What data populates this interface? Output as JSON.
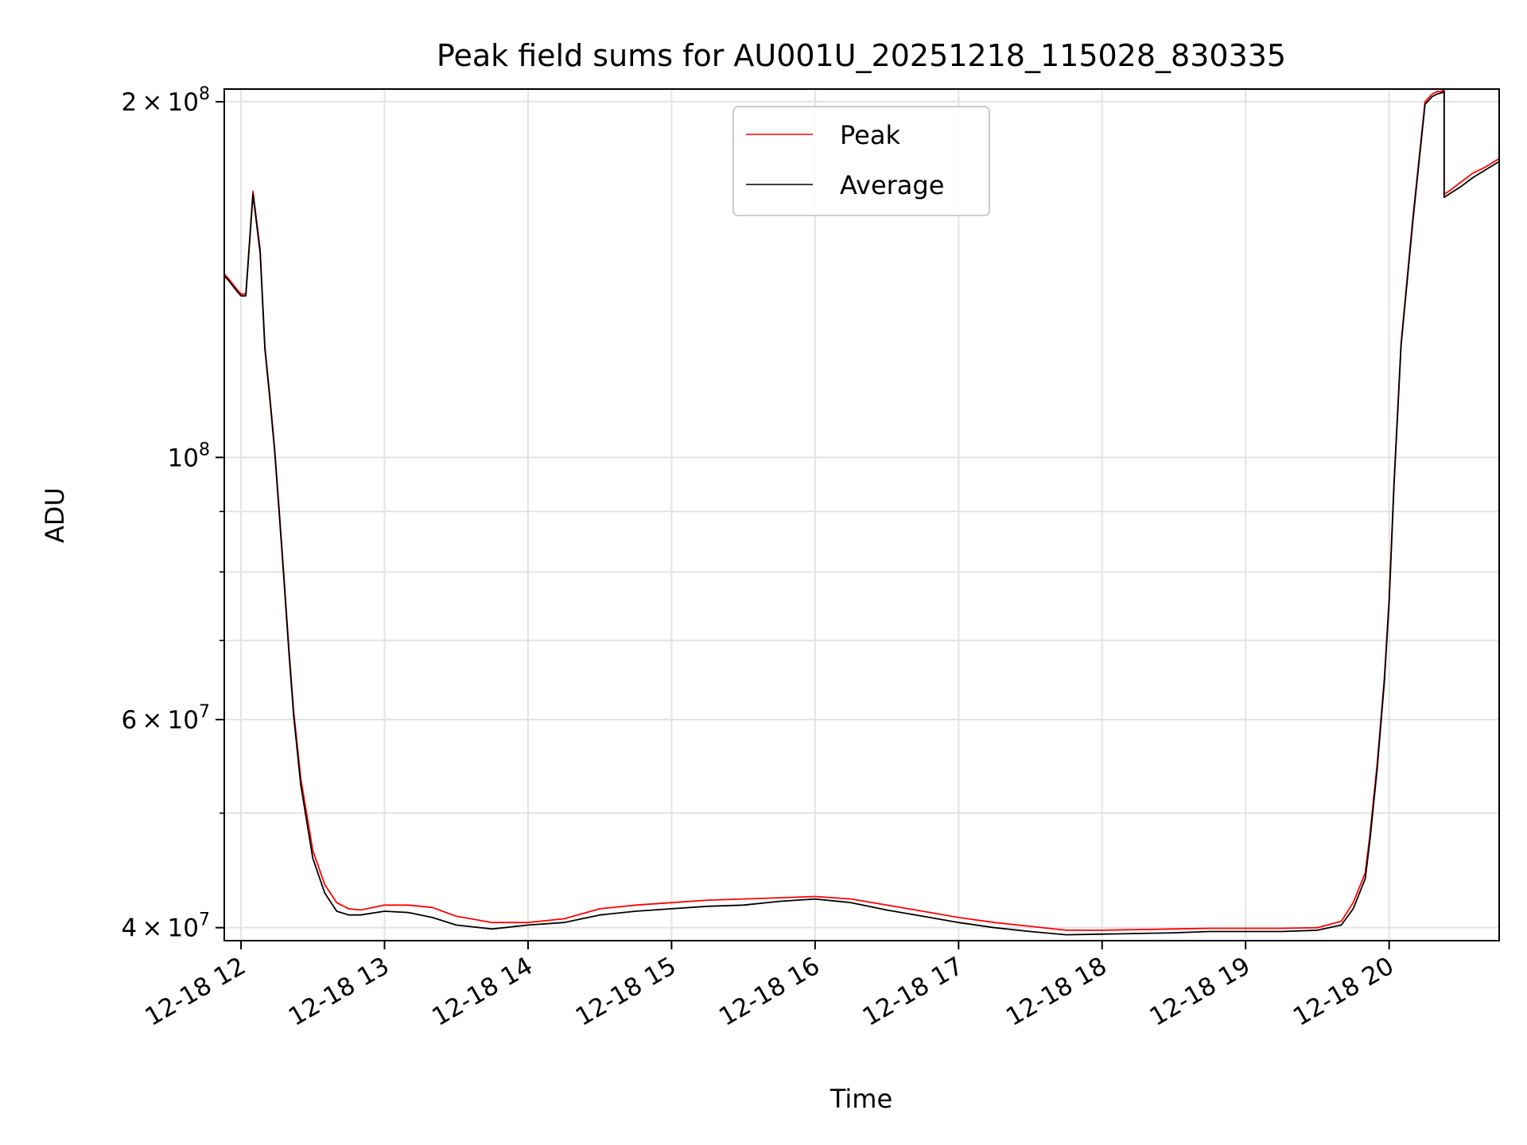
{
  "chart_data": {
    "type": "line",
    "title": "Peak field sums for AU001U_20251218_115028_830335",
    "xlabel": "Time",
    "ylabel": "ADU",
    "yscale": "log",
    "ylim": [
      39000000,
      205000000
    ],
    "xlim": [
      "2025-12-18 11:53",
      "2025-12-18 20:46"
    ],
    "grid": true,
    "legend_position": "top-center",
    "x_ticks": [
      "2025-12-18 12:00",
      "2025-12-18 13:00",
      "2025-12-18 14:00",
      "2025-12-18 15:00",
      "2025-12-18 16:00",
      "2025-12-18 17:00",
      "2025-12-18 18:00",
      "2025-12-18 19:00",
      "2025-12-18 20:00"
    ],
    "x_tick_labels": [
      "12-18 12",
      "12-18 13",
      "12-18 14",
      "12-18 15",
      "12-18 16",
      "12-18 17",
      "12-18 18",
      "12-18 19",
      "12-18 20"
    ],
    "y_major_ticks": [
      {
        "value": 40000000,
        "mantissa": "4",
        "exponent": "7"
      },
      {
        "value": 60000000,
        "mantissa": "6",
        "exponent": "7"
      },
      {
        "value": 100000000,
        "mantissa": "",
        "exponent": "8"
      },
      {
        "value": 200000000,
        "mantissa": "2",
        "exponent": "8"
      }
    ],
    "y_minor_ticks": [
      50000000,
      70000000,
      80000000,
      90000000
    ],
    "series": [
      {
        "name": "Peak",
        "color": "#ff0000",
        "x": [
          "2025-12-18 11:53",
          "2025-12-18 11:55",
          "2025-12-18 11:58",
          "2025-12-18 12:00",
          "2025-12-18 12:02",
          "2025-12-18 12:05",
          "2025-12-18 12:08",
          "2025-12-18 12:10",
          "2025-12-18 12:12",
          "2025-12-18 12:14",
          "2025-12-18 12:16",
          "2025-12-18 12:18",
          "2025-12-18 12:20",
          "2025-12-18 12:22",
          "2025-12-18 12:25",
          "2025-12-18 12:30",
          "2025-12-18 12:35",
          "2025-12-18 12:40",
          "2025-12-18 12:45",
          "2025-12-18 12:50",
          "2025-12-18 13:00",
          "2025-12-18 13:10",
          "2025-12-18 13:20",
          "2025-12-18 13:30",
          "2025-12-18 13:45",
          "2025-12-18 14:00",
          "2025-12-18 14:15",
          "2025-12-18 14:30",
          "2025-12-18 14:45",
          "2025-12-18 15:00",
          "2025-12-18 15:15",
          "2025-12-18 15:30",
          "2025-12-18 15:45",
          "2025-12-18 16:00",
          "2025-12-18 16:15",
          "2025-12-18 16:30",
          "2025-12-18 16:45",
          "2025-12-18 17:00",
          "2025-12-18 17:15",
          "2025-12-18 17:30",
          "2025-12-18 17:45",
          "2025-12-18 18:00",
          "2025-12-18 18:15",
          "2025-12-18 18:30",
          "2025-12-18 18:45",
          "2025-12-18 19:00",
          "2025-12-18 19:15",
          "2025-12-18 19:30",
          "2025-12-18 19:40",
          "2025-12-18 19:45",
          "2025-12-18 19:50",
          "2025-12-18 19:52",
          "2025-12-18 19:55",
          "2025-12-18 19:58",
          "2025-12-18 20:00",
          "2025-12-18 20:02",
          "2025-12-18 20:05",
          "2025-12-18 20:10",
          "2025-12-18 20:15",
          "2025-12-18 20:18",
          "2025-12-18 20:20",
          "2025-12-18 20:22",
          "2025-12-18 20:23",
          "2025-12-18 20:23",
          "2025-12-18 20:25",
          "2025-12-18 20:30",
          "2025-12-18 20:35",
          "2025-12-18 20:40",
          "2025-12-18 20:46"
        ],
        "values": [
          143000000,
          141500000,
          139000000,
          137500000,
          137500000,
          168000000,
          150000000,
          124000000,
          113000000,
          102000000,
          90000000,
          79000000,
          69000000,
          61000000,
          53500000,
          46500000,
          43500000,
          42000000,
          41500000,
          41400000,
          41800000,
          41800000,
          41600000,
          40900000,
          40400000,
          40400000,
          40700000,
          41500000,
          41800000,
          42000000,
          42200000,
          42300000,
          42400000,
          42500000,
          42300000,
          41800000,
          41300000,
          40800000,
          40400000,
          40100000,
          39800000,
          39800000,
          39850000,
          39900000,
          39950000,
          39950000,
          39950000,
          40000000,
          40500000,
          42000000,
          44500000,
          48000000,
          55000000,
          65000000,
          76000000,
          95000000,
          125000000,
          160000000,
          200000000,
          203000000,
          204000000,
          204000000,
          205000000,
          167000000,
          168000000,
          171000000,
          174000000,
          176000000,
          179000000
        ]
      },
      {
        "name": "Average",
        "color": "#000000",
        "x": [
          "2025-12-18 11:53",
          "2025-12-18 11:55",
          "2025-12-18 11:58",
          "2025-12-18 12:00",
          "2025-12-18 12:02",
          "2025-12-18 12:05",
          "2025-12-18 12:08",
          "2025-12-18 12:10",
          "2025-12-18 12:12",
          "2025-12-18 12:14",
          "2025-12-18 12:16",
          "2025-12-18 12:18",
          "2025-12-18 12:20",
          "2025-12-18 12:22",
          "2025-12-18 12:25",
          "2025-12-18 12:30",
          "2025-12-18 12:35",
          "2025-12-18 12:40",
          "2025-12-18 12:45",
          "2025-12-18 12:50",
          "2025-12-18 13:00",
          "2025-12-18 13:10",
          "2025-12-18 13:20",
          "2025-12-18 13:30",
          "2025-12-18 13:45",
          "2025-12-18 14:00",
          "2025-12-18 14:15",
          "2025-12-18 14:30",
          "2025-12-18 14:45",
          "2025-12-18 15:00",
          "2025-12-18 15:15",
          "2025-12-18 15:30",
          "2025-12-18 15:45",
          "2025-12-18 16:00",
          "2025-12-18 16:15",
          "2025-12-18 16:30",
          "2025-12-18 16:45",
          "2025-12-18 17:00",
          "2025-12-18 17:15",
          "2025-12-18 17:30",
          "2025-12-18 17:45",
          "2025-12-18 18:00",
          "2025-12-18 18:15",
          "2025-12-18 18:30",
          "2025-12-18 18:45",
          "2025-12-18 19:00",
          "2025-12-18 19:15",
          "2025-12-18 19:30",
          "2025-12-18 19:40",
          "2025-12-18 19:45",
          "2025-12-18 19:50",
          "2025-12-18 19:52",
          "2025-12-18 19:55",
          "2025-12-18 19:58",
          "2025-12-18 20:00",
          "2025-12-18 20:02",
          "2025-12-18 20:05",
          "2025-12-18 20:10",
          "2025-12-18 20:15",
          "2025-12-18 20:18",
          "2025-12-18 20:20",
          "2025-12-18 20:22",
          "2025-12-18 20:23",
          "2025-12-18 20:23",
          "2025-12-18 20:25",
          "2025-12-18 20:30",
          "2025-12-18 20:35",
          "2025-12-18 20:40",
          "2025-12-18 20:46"
        ],
        "values": [
          142500000,
          141000000,
          138500000,
          137000000,
          137000000,
          167000000,
          149000000,
          123500000,
          112500000,
          101500000,
          89500000,
          78500000,
          68500000,
          60500000,
          52800000,
          45800000,
          42800000,
          41300000,
          41000000,
          41000000,
          41300000,
          41200000,
          40800000,
          40200000,
          39900000,
          40200000,
          40400000,
          41000000,
          41300000,
          41500000,
          41700000,
          41800000,
          42100000,
          42300000,
          42000000,
          41400000,
          40900000,
          40400000,
          40000000,
          39700000,
          39450000,
          39500000,
          39550000,
          39600000,
          39700000,
          39700000,
          39700000,
          39800000,
          40200000,
          41500000,
          44000000,
          47500000,
          54500000,
          64500000,
          75500000,
          94500000,
          124500000,
          159000000,
          199000000,
          202000000,
          203000000,
          203500000,
          204000000,
          166000000,
          167000000,
          169500000,
          172500000,
          175000000,
          178000000
        ]
      }
    ]
  }
}
